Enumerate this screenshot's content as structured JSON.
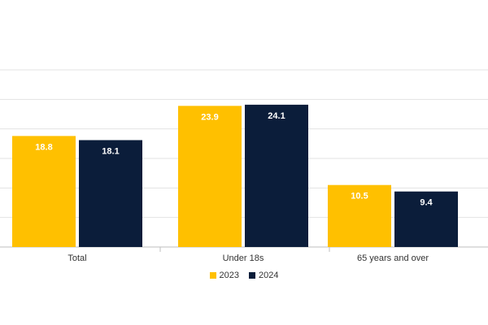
{
  "chart_data": {
    "type": "bar",
    "categories": [
      "Total",
      "Under 18s",
      "65 years and over"
    ],
    "series": [
      {
        "name": "2023",
        "values": [
          18.8,
          23.9,
          10.5
        ],
        "color": "#FFC000"
      },
      {
        "name": "2024",
        "values": [
          18.1,
          24.1,
          9.4
        ],
        "color": "#0B1D3A"
      }
    ],
    "ylim": [
      0,
      30
    ],
    "yticks": [
      0,
      5,
      10,
      15,
      20,
      25,
      30
    ],
    "grid": true,
    "legend_position": "bottom-center",
    "title": "",
    "xlabel": "",
    "ylabel": ""
  }
}
